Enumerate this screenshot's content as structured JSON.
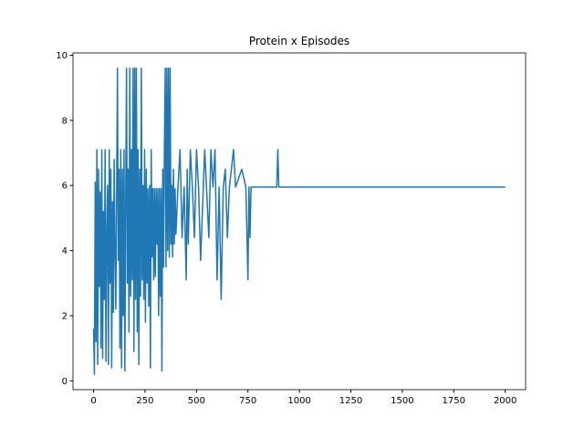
{
  "chart_data": {
    "type": "line",
    "title": "Protein x Episodes",
    "x": [
      0,
      4,
      8,
      12,
      16,
      20,
      24,
      28,
      32,
      36,
      40,
      44,
      48,
      52,
      56,
      60,
      64,
      68,
      72,
      76,
      80,
      84,
      88,
      92,
      96,
      100,
      104,
      108,
      112,
      116,
      120,
      124,
      128,
      132,
      136,
      140,
      144,
      148,
      152,
      156,
      160,
      164,
      168,
      172,
      176,
      180,
      184,
      188,
      192,
      196,
      200,
      204,
      208,
      212,
      216,
      220,
      224,
      228,
      232,
      236,
      240,
      244,
      248,
      252,
      256,
      260,
      264,
      268,
      272,
      276,
      280,
      284,
      288,
      292,
      296,
      300,
      304,
      308,
      312,
      316,
      320,
      324,
      328,
      332,
      336,
      340,
      344,
      348,
      352,
      356,
      360,
      364,
      368,
      372,
      376,
      380,
      384,
      388,
      392,
      396,
      400,
      410,
      420,
      430,
      440,
      450,
      455,
      460,
      470,
      480,
      490,
      500,
      510,
      520,
      540,
      560,
      570,
      580,
      590,
      600,
      610,
      620,
      630,
      640,
      650,
      660,
      680,
      690,
      720,
      740,
      750,
      755,
      760,
      765,
      780,
      890,
      895,
      900,
      2000
    ],
    "series": [
      {
        "color": "#1f77b4",
        "values": [
          1.6,
          0.2,
          6.1,
          1.2,
          7.1,
          0.5,
          6.5,
          2.9,
          5.8,
          1.0,
          7.1,
          0.7,
          5.2,
          2.5,
          7.1,
          0.6,
          4.5,
          6.0,
          0.5,
          7.1,
          3.0,
          6.5,
          0.4,
          5.5,
          2.1,
          6.8,
          4.0,
          2.2,
          5.9,
          9.6,
          3.7,
          6.5,
          1.0,
          7.1,
          0.4,
          6.5,
          2.0,
          7.1,
          0.3,
          5.5,
          9.6,
          3.0,
          6.5,
          1.5,
          9.6,
          2.6,
          7.1,
          3.1,
          9.6,
          0.9,
          9.6,
          2.5,
          9.6,
          1.5,
          7.1,
          0.5,
          6.5,
          2.6,
          9.6,
          3.1,
          6.0,
          2.5,
          7.1,
          1.8,
          6.5,
          3.0,
          5.9,
          2.3,
          6.0,
          0.4,
          7.1,
          3.8,
          5.9,
          3.1,
          5.9,
          3.2,
          5.9,
          4.2,
          5.9,
          2.0,
          5.9,
          2.6,
          5.9,
          0.3,
          6.5,
          3.5,
          7.1,
          9.6,
          3.5,
          9.6,
          4.0,
          9.6,
          3.8,
          9.6,
          4.2,
          6.0,
          3.8,
          6.5,
          4.2,
          5.9,
          4.5,
          5.95,
          7.1,
          4.4,
          5.95,
          3.1,
          6.5,
          4.2,
          7.1,
          5.95,
          4.4,
          7.1,
          5.95,
          3.7,
          7.1,
          4.4,
          7.1,
          5.95,
          7.1,
          3.1,
          5.95,
          2.5,
          5.95,
          6.5,
          4.4,
          5.95,
          7.1,
          5.95,
          6.5,
          5.95,
          3.1,
          5.95,
          4.4,
          5.95,
          5.95,
          5.95,
          7.1,
          5.95,
          5.95
        ]
      }
    ],
    "xlim": [
      -100,
      2099
    ],
    "ylim": [
      -0.27,
      10.07
    ],
    "xticks": [
      0,
      250,
      500,
      750,
      1000,
      1250,
      1500,
      1750,
      2000
    ],
    "yticks": [
      0,
      2,
      4,
      6,
      8,
      10
    ]
  }
}
